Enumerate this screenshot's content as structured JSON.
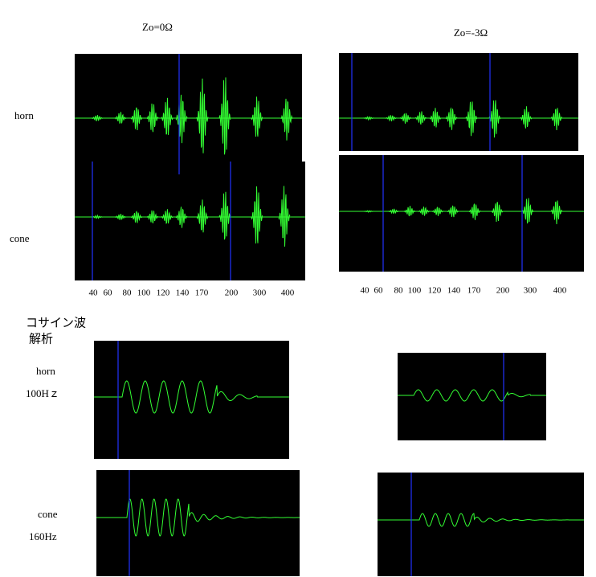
{
  "headers": [
    "Zo=0Ω",
    "Zo=-3Ω"
  ],
  "row_labels": [
    "horn",
    "cone"
  ],
  "freq_labels": [
    [
      "40",
      "60",
      "80",
      "100",
      "120",
      "140",
      "170",
      "200",
      "300",
      "400"
    ],
    [
      "40",
      "60",
      "80",
      "100",
      "120",
      "140",
      "170",
      "200",
      "300",
      "400"
    ]
  ],
  "cosine_section": {
    "title_lines": [
      "コサイン波",
      "解析"
    ],
    "horn_label": "horn",
    "horn_freq": "100Hｚ",
    "cone_label": "cone",
    "cone_freq": "160Hz"
  }
}
